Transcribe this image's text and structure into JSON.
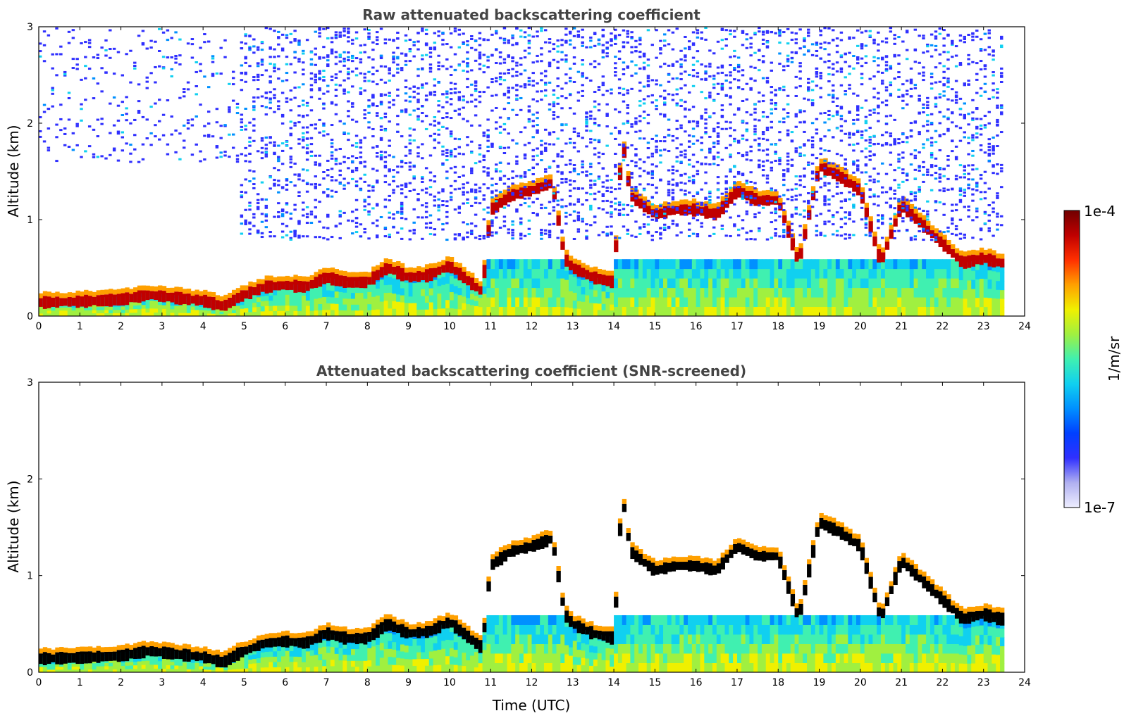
{
  "chart_data": [
    {
      "type": "heatmap",
      "title": "Raw attenuated backscattering coefficient",
      "xlabel": "",
      "ylabel": "Altitude (km)",
      "xlim": [
        0,
        24
      ],
      "ylim": [
        0,
        3
      ],
      "xticks": [
        "0",
        "1",
        "2",
        "3",
        "4",
        "5",
        "6",
        "7",
        "8",
        "9",
        "10",
        "11",
        "12",
        "13",
        "14",
        "15",
        "16",
        "17",
        "18",
        "19",
        "20",
        "21",
        "22",
        "23",
        "24"
      ],
      "yticks": [
        "0",
        "1",
        "2",
        "3"
      ],
      "cloud_layer_km": [
        [
          0.0,
          0.14
        ],
        [
          1.0,
          0.15
        ],
        [
          2.0,
          0.17
        ],
        [
          2.7,
          0.22
        ],
        [
          3.5,
          0.18
        ],
        [
          4.0,
          0.16
        ],
        [
          4.5,
          0.1
        ],
        [
          4.9,
          0.2
        ],
        [
          5.5,
          0.3
        ],
        [
          6.0,
          0.32
        ],
        [
          6.5,
          0.3
        ],
        [
          7.0,
          0.4
        ],
        [
          7.5,
          0.35
        ],
        [
          8.0,
          0.35
        ],
        [
          8.5,
          0.5
        ],
        [
          9.0,
          0.4
        ],
        [
          9.5,
          0.42
        ],
        [
          10.0,
          0.52
        ],
        [
          10.5,
          0.35
        ],
        [
          10.8,
          0.25
        ],
        [
          11.0,
          1.1
        ],
        [
          11.5,
          1.25
        ],
        [
          12.0,
          1.3
        ],
        [
          12.5,
          1.38
        ],
        [
          12.8,
          0.6
        ],
        [
          13.0,
          0.5
        ],
        [
          13.5,
          0.4
        ],
        [
          14.0,
          0.35
        ],
        [
          14.2,
          1.85
        ],
        [
          14.4,
          1.25
        ],
        [
          15.0,
          1.05
        ],
        [
          15.5,
          1.1
        ],
        [
          16.0,
          1.1
        ],
        [
          16.5,
          1.05
        ],
        [
          17.0,
          1.3
        ],
        [
          17.5,
          1.2
        ],
        [
          18.0,
          1.2
        ],
        [
          18.5,
          0.55
        ],
        [
          19.0,
          1.55
        ],
        [
          19.5,
          1.45
        ],
        [
          20.0,
          1.3
        ],
        [
          20.5,
          0.55
        ],
        [
          21.0,
          1.15
        ],
        [
          22.5,
          0.55
        ],
        [
          23.0,
          0.6
        ],
        [
          23.4,
          0.55
        ]
      ]
    },
    {
      "type": "heatmap",
      "title": "Attenuated backscattering coefficient (SNR-screened)",
      "xlabel": "Time (UTC)",
      "ylabel": "Altitude (km)",
      "xlim": [
        0,
        24
      ],
      "ylim": [
        0,
        3
      ],
      "xticks": [
        "0",
        "1",
        "2",
        "3",
        "4",
        "5",
        "6",
        "7",
        "8",
        "9",
        "10",
        "11",
        "12",
        "13",
        "14",
        "15",
        "16",
        "17",
        "18",
        "19",
        "20",
        "21",
        "22",
        "23",
        "24"
      ],
      "yticks": [
        "0",
        "1",
        "2",
        "3"
      ]
    }
  ],
  "colorbar": {
    "max_label": "1e-4",
    "min_label": "1e-7",
    "unit": "1/m/sr",
    "colors": [
      "#eeeeff",
      "#b0b0f0",
      "#3030ff",
      "#0040ff",
      "#0090ff",
      "#10d0f0",
      "#40f0b0",
      "#a0f040",
      "#f0f000",
      "#ffa000",
      "#ff3000",
      "#c00000",
      "#700000"
    ]
  }
}
